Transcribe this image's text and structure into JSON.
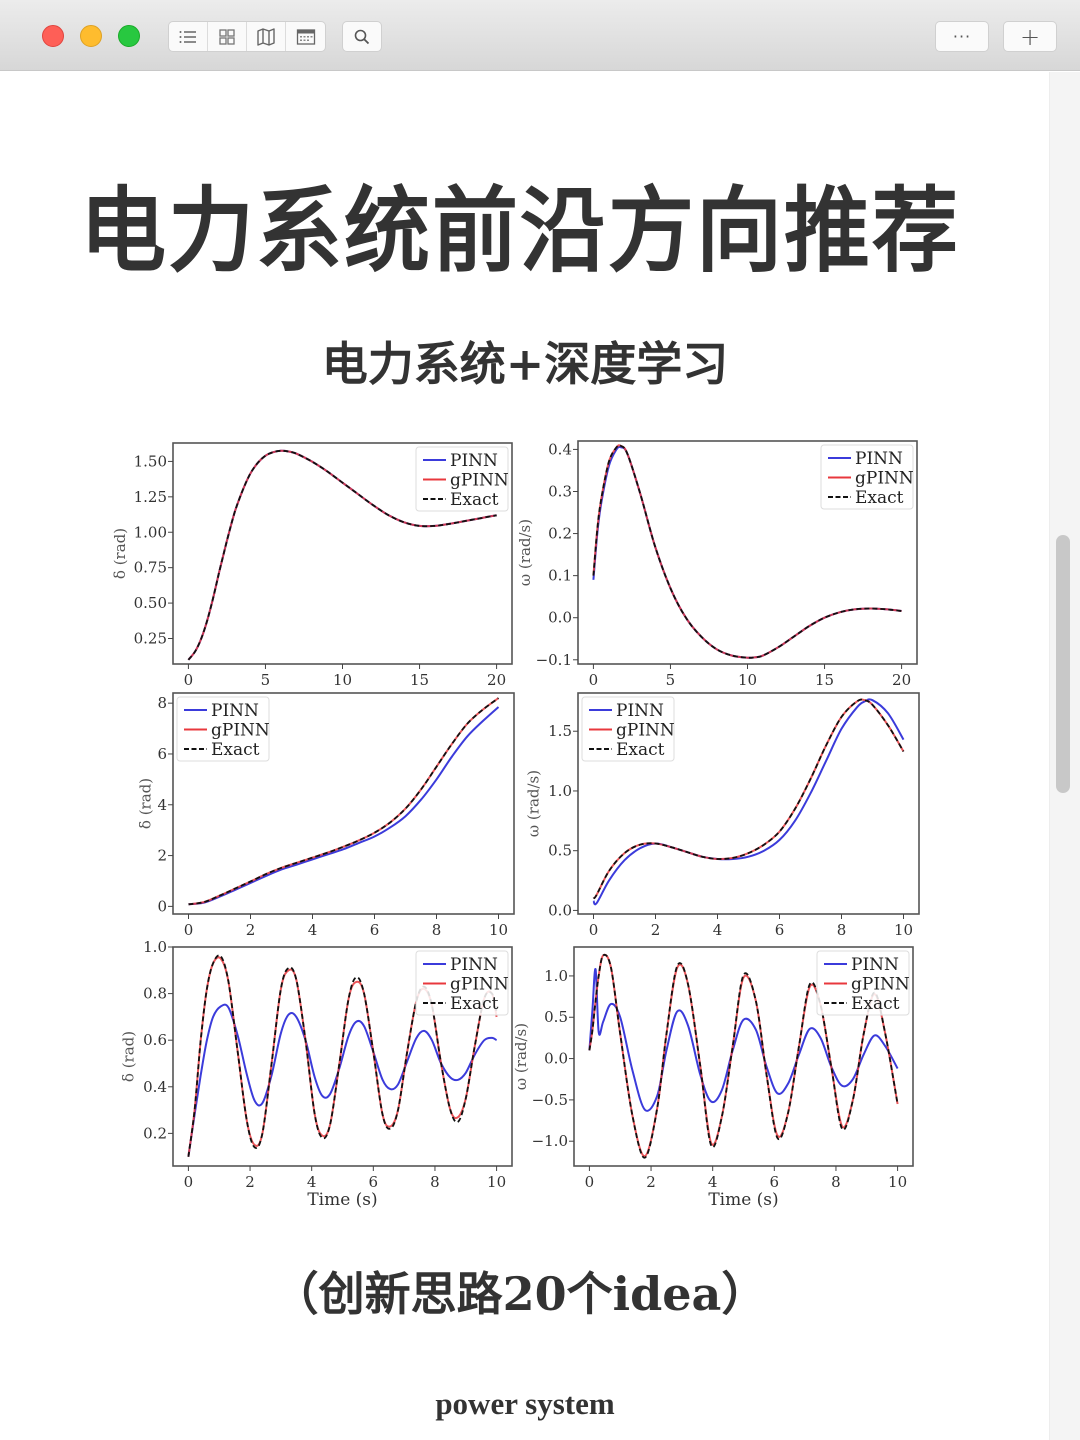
{
  "window": {
    "toolbar": {
      "view_buttons": [
        {
          "name": "list-view",
          "icon": "list-icon"
        },
        {
          "name": "grid-view",
          "icon": "grid-icon"
        },
        {
          "name": "map-view",
          "icon": "map-icon"
        },
        {
          "name": "calendar-view",
          "icon": "calendar-icon"
        }
      ],
      "search_icon": "search-icon",
      "more_label": "···",
      "add_label": "+"
    }
  },
  "page": {
    "title": "电力系统前沿方向推荐",
    "subtitle": "电力系统+深度学习",
    "caption": "（创新思路20个idea）",
    "footer": "power system"
  },
  "colors": {
    "pinn": "#3b3bdb",
    "gpinn": "#e8383d",
    "exact": "#111111",
    "text": "#333333"
  },
  "chart_data": [
    {
      "type": "line",
      "id": "top-left",
      "xlabel": "",
      "ylabel": "δ (rad)",
      "xlim": [
        -1,
        21
      ],
      "ylim": [
        0.07,
        1.63
      ],
      "xticks": [
        0,
        5,
        10,
        15,
        20
      ],
      "yticks": [
        0.25,
        0.5,
        0.75,
        1.0,
        1.25,
        1.5
      ],
      "ytick_labels": [
        "0.25",
        "0.50",
        "0.75",
        "1.00",
        "1.25",
        "1.50"
      ],
      "legend": {
        "entries": [
          "PINN",
          "gPINN",
          "Exact"
        ],
        "position": "upper right"
      },
      "x": [
        0,
        0.5,
        1,
        1.5,
        2,
        2.5,
        3,
        3.5,
        4,
        4.5,
        5,
        5.5,
        6,
        6.5,
        7,
        8,
        9,
        10,
        11,
        12,
        13,
        14,
        15,
        16,
        17,
        18,
        19,
        20
      ],
      "series": [
        {
          "name": "PINN",
          "values": [
            0.1,
            0.17,
            0.3,
            0.49,
            0.72,
            0.94,
            1.14,
            1.29,
            1.41,
            1.49,
            1.54,
            1.565,
            1.575,
            1.57,
            1.555,
            1.5,
            1.43,
            1.35,
            1.27,
            1.19,
            1.12,
            1.07,
            1.045,
            1.045,
            1.06,
            1.08,
            1.1,
            1.12
          ]
        },
        {
          "name": "gPINN",
          "values": [
            0.1,
            0.17,
            0.3,
            0.49,
            0.72,
            0.94,
            1.14,
            1.29,
            1.41,
            1.49,
            1.54,
            1.565,
            1.575,
            1.57,
            1.555,
            1.5,
            1.43,
            1.35,
            1.27,
            1.19,
            1.12,
            1.07,
            1.045,
            1.045,
            1.06,
            1.08,
            1.1,
            1.12
          ]
        },
        {
          "name": "Exact",
          "values": [
            0.1,
            0.17,
            0.3,
            0.49,
            0.72,
            0.94,
            1.14,
            1.29,
            1.41,
            1.49,
            1.54,
            1.565,
            1.575,
            1.57,
            1.555,
            1.5,
            1.43,
            1.35,
            1.27,
            1.19,
            1.12,
            1.07,
            1.045,
            1.045,
            1.06,
            1.08,
            1.1,
            1.12
          ]
        }
      ]
    },
    {
      "type": "line",
      "id": "top-right",
      "xlabel": "",
      "ylabel": "ω (rad/s)",
      "xlim": [
        -1,
        21
      ],
      "ylim": [
        -0.11,
        0.42
      ],
      "xticks": [
        0,
        5,
        10,
        15,
        20
      ],
      "yticks": [
        -0.1,
        0.0,
        0.1,
        0.2,
        0.3,
        0.4
      ],
      "ytick_labels": [
        "−0.1",
        "0.0",
        "0.1",
        "0.2",
        "0.3",
        "0.4"
      ],
      "legend": {
        "entries": [
          "PINN",
          "gPINN",
          "Exact"
        ],
        "position": "upper right"
      },
      "x": [
        0,
        0.25,
        0.5,
        1,
        1.5,
        1.8,
        2.2,
        3,
        4,
        5,
        6,
        7,
        8,
        9,
        10,
        10.5,
        11,
        12,
        13,
        14,
        15,
        16,
        17,
        18,
        19,
        20
      ],
      "series": [
        {
          "name": "PINN",
          "values": [
            0.09,
            0.2,
            0.27,
            0.36,
            0.4,
            0.405,
            0.39,
            0.3,
            0.17,
            0.07,
            0.0,
            -0.045,
            -0.075,
            -0.09,
            -0.095,
            -0.094,
            -0.09,
            -0.07,
            -0.045,
            -0.02,
            0.0,
            0.013,
            0.02,
            0.022,
            0.02,
            0.016
          ]
        },
        {
          "name": "gPINN",
          "values": [
            0.1,
            0.21,
            0.28,
            0.37,
            0.405,
            0.408,
            0.39,
            0.3,
            0.17,
            0.07,
            0.0,
            -0.045,
            -0.075,
            -0.09,
            -0.095,
            -0.094,
            -0.09,
            -0.07,
            -0.045,
            -0.02,
            0.0,
            0.013,
            0.02,
            0.022,
            0.02,
            0.016
          ]
        },
        {
          "name": "Exact",
          "values": [
            0.1,
            0.21,
            0.28,
            0.37,
            0.405,
            0.408,
            0.39,
            0.3,
            0.17,
            0.07,
            0.0,
            -0.045,
            -0.075,
            -0.09,
            -0.095,
            -0.094,
            -0.09,
            -0.07,
            -0.045,
            -0.02,
            0.0,
            0.013,
            0.02,
            0.022,
            0.02,
            0.016
          ]
        }
      ]
    },
    {
      "type": "line",
      "id": "middle-left",
      "xlabel": "",
      "ylabel": "δ (rad)",
      "xlim": [
        -0.5,
        10.5
      ],
      "ylim": [
        -0.3,
        8.4
      ],
      "xticks": [
        0,
        2,
        4,
        6,
        8,
        10
      ],
      "yticks": [
        0,
        2,
        4,
        6,
        8
      ],
      "ytick_labels": [
        "0",
        "2",
        "4",
        "6",
        "8"
      ],
      "legend": {
        "entries": [
          "PINN",
          "gPINN",
          "Exact"
        ],
        "position": "upper left"
      },
      "x": [
        0,
        0.5,
        1,
        1.5,
        2,
        2.5,
        3,
        3.5,
        4,
        4.5,
        5,
        5.5,
        6,
        6.5,
        7,
        7.5,
        8,
        8.5,
        9,
        9.5,
        10
      ],
      "series": [
        {
          "name": "PINN",
          "values": [
            0.08,
            0.15,
            0.38,
            0.65,
            0.92,
            1.2,
            1.45,
            1.65,
            1.85,
            2.05,
            2.25,
            2.5,
            2.75,
            3.1,
            3.55,
            4.2,
            5.0,
            5.9,
            6.7,
            7.3,
            7.85
          ]
        },
        {
          "name": "gPINN",
          "values": [
            0.08,
            0.17,
            0.42,
            0.7,
            0.98,
            1.27,
            1.52,
            1.72,
            1.92,
            2.12,
            2.35,
            2.6,
            2.9,
            3.3,
            3.85,
            4.6,
            5.5,
            6.4,
            7.2,
            7.75,
            8.2
          ]
        },
        {
          "name": "Exact",
          "values": [
            0.08,
            0.17,
            0.42,
            0.7,
            0.98,
            1.27,
            1.52,
            1.72,
            1.92,
            2.12,
            2.35,
            2.6,
            2.9,
            3.3,
            3.85,
            4.6,
            5.5,
            6.4,
            7.2,
            7.75,
            8.2
          ]
        }
      ]
    },
    {
      "type": "line",
      "id": "middle-right",
      "xlabel": "",
      "ylabel": "ω (rad/s)",
      "xlim": [
        -0.5,
        10.5
      ],
      "ylim": [
        -0.03,
        1.82
      ],
      "xticks": [
        0,
        2,
        4,
        6,
        8,
        10
      ],
      "yticks": [
        0.0,
        0.5,
        1.0,
        1.5
      ],
      "ytick_labels": [
        "0.0",
        "0.5",
        "1.0",
        "1.5"
      ],
      "legend": {
        "entries": [
          "PINN",
          "gPINN",
          "Exact"
        ],
        "position": "upper left"
      },
      "x": [
        0,
        0.1,
        0.5,
        1,
        1.5,
        2,
        2.5,
        3,
        3.5,
        4,
        4.5,
        5,
        5.5,
        6,
        6.5,
        7,
        7.5,
        8,
        8.5,
        8.75,
        9,
        9.5,
        10
      ],
      "series": [
        {
          "name": "PINN",
          "values": [
            0.08,
            0.06,
            0.25,
            0.42,
            0.52,
            0.56,
            0.53,
            0.49,
            0.45,
            0.43,
            0.43,
            0.45,
            0.5,
            0.59,
            0.75,
            0.98,
            1.25,
            1.52,
            1.7,
            1.75,
            1.76,
            1.65,
            1.43
          ]
        },
        {
          "name": "gPINN",
          "values": [
            0.1,
            0.13,
            0.33,
            0.48,
            0.55,
            0.56,
            0.53,
            0.49,
            0.45,
            0.43,
            0.44,
            0.48,
            0.55,
            0.66,
            0.85,
            1.1,
            1.38,
            1.62,
            1.75,
            1.76,
            1.72,
            1.55,
            1.33
          ]
        },
        {
          "name": "Exact",
          "values": [
            0.1,
            0.13,
            0.33,
            0.48,
            0.55,
            0.56,
            0.53,
            0.49,
            0.45,
            0.43,
            0.44,
            0.48,
            0.55,
            0.66,
            0.85,
            1.1,
            1.38,
            1.62,
            1.75,
            1.76,
            1.72,
            1.55,
            1.33
          ]
        }
      ]
    },
    {
      "type": "line",
      "id": "bottom-left",
      "xlabel": "Time (s)",
      "ylabel": "δ (rad)",
      "xlim": [
        -0.5,
        10.5
      ],
      "ylim": [
        0.06,
        1.0
      ],
      "xticks": [
        0,
        2,
        4,
        6,
        8,
        10
      ],
      "yticks": [
        0.2,
        0.4,
        0.6,
        0.8,
        1.0
      ],
      "ytick_labels": [
        "0.2",
        "0.4",
        "0.6",
        "0.8",
        "1.0"
      ],
      "legend": {
        "entries": [
          "PINN",
          "gPINN",
          "Exact"
        ],
        "position": "upper right"
      },
      "x": [
        0,
        0.2,
        0.4,
        0.6,
        0.8,
        1.05,
        1.3,
        1.6,
        1.9,
        2.15,
        2.4,
        2.7,
        3.0,
        3.25,
        3.5,
        3.8,
        4.1,
        4.35,
        4.6,
        4.9,
        5.2,
        5.45,
        5.7,
        6.0,
        6.3,
        6.55,
        6.8,
        7.1,
        7.4,
        7.65,
        7.9,
        8.2,
        8.5,
        8.75,
        9.0,
        9.3,
        9.6,
        9.85,
        10.0
      ],
      "series": [
        {
          "name": "PINN",
          "values": [
            0.1,
            0.28,
            0.45,
            0.6,
            0.7,
            0.745,
            0.74,
            0.62,
            0.45,
            0.34,
            0.33,
            0.45,
            0.63,
            0.71,
            0.7,
            0.6,
            0.44,
            0.36,
            0.37,
            0.48,
            0.62,
            0.68,
            0.66,
            0.55,
            0.43,
            0.39,
            0.41,
            0.51,
            0.61,
            0.64,
            0.6,
            0.5,
            0.44,
            0.43,
            0.46,
            0.54,
            0.6,
            0.61,
            0.6
          ]
        },
        {
          "name": "gPINN",
          "values": [
            0.1,
            0.3,
            0.6,
            0.82,
            0.93,
            0.95,
            0.85,
            0.55,
            0.25,
            0.15,
            0.2,
            0.5,
            0.82,
            0.9,
            0.86,
            0.6,
            0.28,
            0.19,
            0.24,
            0.5,
            0.78,
            0.85,
            0.8,
            0.55,
            0.28,
            0.23,
            0.3,
            0.55,
            0.77,
            0.82,
            0.75,
            0.5,
            0.3,
            0.27,
            0.35,
            0.58,
            0.78,
            0.8,
            0.7
          ]
        },
        {
          "name": "Exact",
          "values": [
            0.1,
            0.3,
            0.6,
            0.82,
            0.93,
            0.96,
            0.85,
            0.55,
            0.25,
            0.14,
            0.2,
            0.5,
            0.82,
            0.91,
            0.86,
            0.6,
            0.28,
            0.18,
            0.24,
            0.5,
            0.78,
            0.87,
            0.8,
            0.55,
            0.28,
            0.22,
            0.3,
            0.55,
            0.77,
            0.83,
            0.75,
            0.5,
            0.3,
            0.25,
            0.35,
            0.58,
            0.78,
            0.8,
            0.72
          ]
        }
      ]
    },
    {
      "type": "line",
      "id": "bottom-right",
      "xlabel": "Time (s)",
      "ylabel": "ω (rad/s)",
      "xlim": [
        -0.5,
        10.5
      ],
      "ylim": [
        -1.3,
        1.35
      ],
      "xticks": [
        0,
        2,
        4,
        6,
        8,
        10
      ],
      "yticks": [
        -1.0,
        -0.5,
        0.0,
        0.5,
        1.0
      ],
      "ytick_labels": [
        "−1.0",
        "−0.5",
        "0.0",
        "0.5",
        "1.0"
      ],
      "legend": {
        "entries": [
          "PINN",
          "gPINN",
          "Exact"
        ],
        "position": "upper right"
      },
      "x": [
        0,
        0.1,
        0.2,
        0.3,
        0.45,
        0.7,
        1.0,
        1.4,
        1.8,
        2.2,
        2.5,
        2.85,
        3.2,
        3.6,
        3.95,
        4.3,
        4.65,
        5.0,
        5.4,
        5.75,
        6.1,
        6.45,
        6.8,
        7.15,
        7.5,
        7.85,
        8.2,
        8.55,
        8.9,
        9.25,
        9.6,
        10.0
      ],
      "series": [
        {
          "name": "PINN",
          "values": [
            0.1,
            0.6,
            1.08,
            0.32,
            0.45,
            0.66,
            0.5,
            -0.15,
            -0.62,
            -0.45,
            0.1,
            0.57,
            0.4,
            -0.2,
            -0.52,
            -0.38,
            0.1,
            0.47,
            0.35,
            -0.1,
            -0.42,
            -0.3,
            0.05,
            0.36,
            0.25,
            -0.1,
            -0.33,
            -0.25,
            0.05,
            0.28,
            0.15,
            -0.12
          ]
        },
        {
          "name": "gPINN",
          "values": [
            0.1,
            0.35,
            0.7,
            1.0,
            1.25,
            1.1,
            0.3,
            -0.7,
            -1.18,
            -0.6,
            0.3,
            1.1,
            0.9,
            -0.1,
            -1.02,
            -0.7,
            0.15,
            0.98,
            0.7,
            -0.2,
            -0.93,
            -0.65,
            0.15,
            0.87,
            0.65,
            -0.1,
            -0.82,
            -0.5,
            0.3,
            0.78,
            0.3,
            -0.55
          ]
        },
        {
          "name": "Exact",
          "values": [
            0.1,
            0.35,
            0.7,
            1.0,
            1.25,
            1.1,
            0.3,
            -0.7,
            -1.2,
            -0.6,
            0.3,
            1.12,
            0.9,
            -0.1,
            -1.05,
            -0.7,
            0.15,
            1.01,
            0.7,
            -0.2,
            -0.96,
            -0.65,
            0.15,
            0.9,
            0.65,
            -0.1,
            -0.85,
            -0.5,
            0.3,
            0.8,
            0.3,
            -0.55
          ]
        }
      ]
    }
  ]
}
